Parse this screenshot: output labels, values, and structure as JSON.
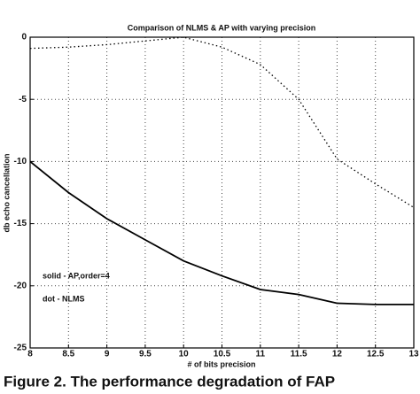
{
  "chart_data": {
    "type": "line",
    "title": "Comparison of NLMS & AP with varying precision",
    "x_label": "# of bits precision",
    "y_label": "db echo cancellation",
    "x": [
      8,
      8.5,
      9,
      9.5,
      10,
      10.5,
      11,
      11.5,
      12,
      12.5,
      13
    ],
    "series": [
      {
        "color": "#000000",
        "line_style": "solid",
        "values": [
          -10,
          -12.5,
          -14.6,
          -16.3,
          -18,
          -19.2,
          -20.3,
          -20.7,
          -21.4,
          -21.5,
          -21.5
        ]
      },
      {
        "color": "#000000",
        "line_style": "dotted",
        "values": [
          -0.9,
          -0.8,
          -0.6,
          -0.3,
          0,
          -0.8,
          -2.2,
          -5,
          -9.8,
          -11.8,
          -13.7
        ]
      }
    ],
    "annotations": [
      "solid  -  AP,order=4",
      "dot   -  NLMS"
    ],
    "xlim": [
      8,
      13
    ],
    "xticks": [
      8,
      8.5,
      9,
      9.5,
      10,
      10.5,
      11,
      11.5,
      12,
      12.5,
      13
    ],
    "ylim": [
      -25,
      0
    ],
    "yticks": [
      -25,
      -20,
      -15,
      -10,
      -5,
      0
    ],
    "grid": true,
    "caption": "Figure 2. The performance degradation of FAP"
  }
}
